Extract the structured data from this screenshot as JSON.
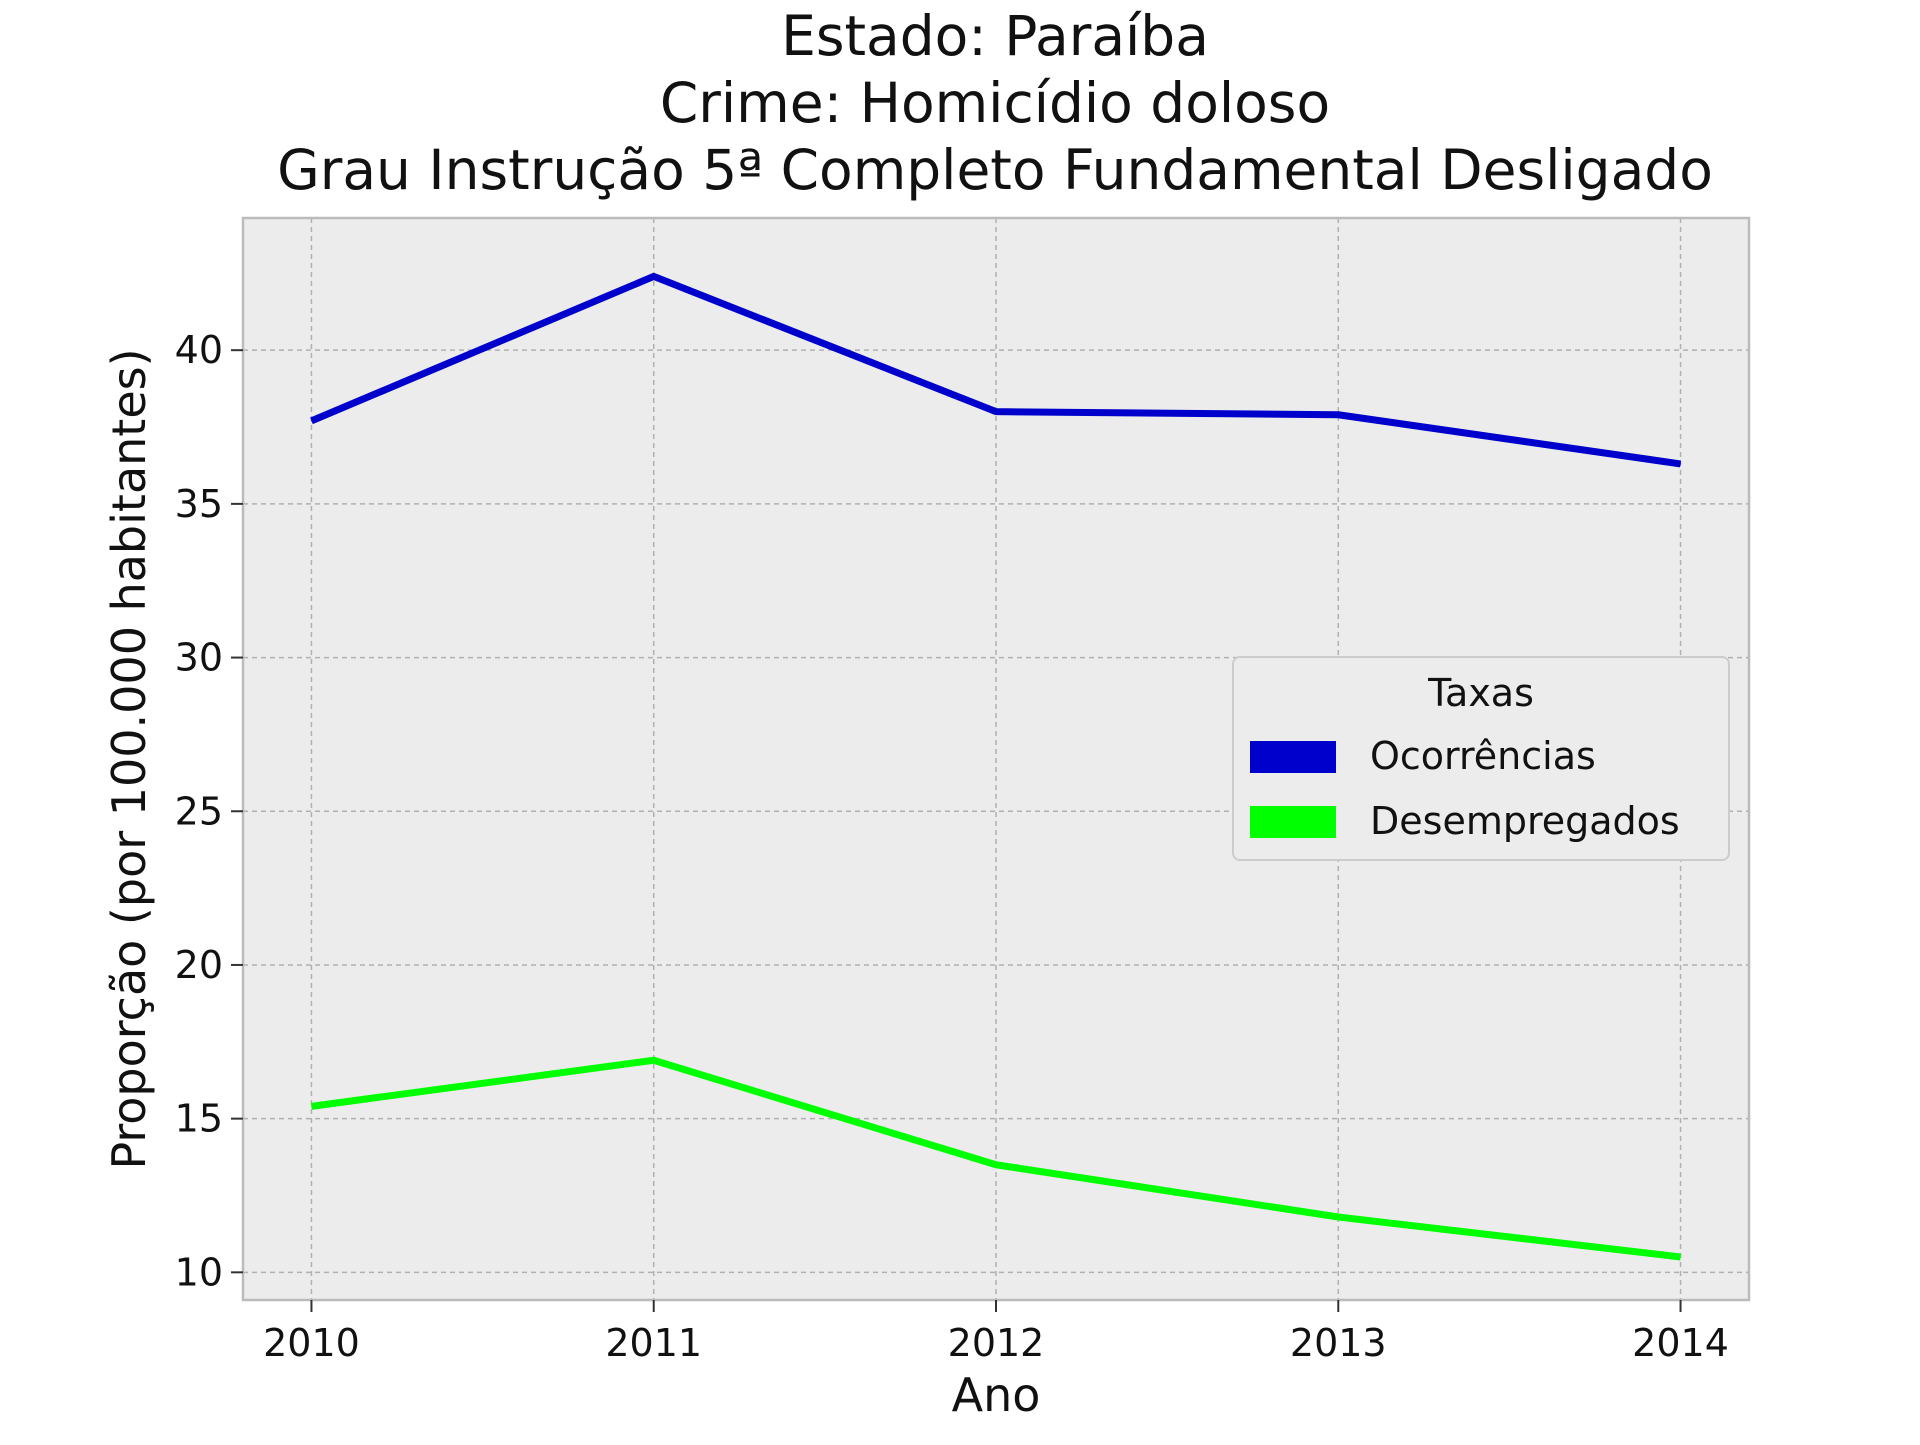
{
  "chart_data": {
    "type": "line",
    "title_lines": [
      "Estado: Paraíba",
      "Crime: Homicídio doloso",
      "Grau Instrução  5ª Completo Fundamental   Desligado"
    ],
    "xlabel": "Ano",
    "ylabel": "Proporção (por 100.000 habitantes)",
    "x": [
      2010,
      2011,
      2012,
      2013,
      2014
    ],
    "x_ticks": [
      "2010",
      "2011",
      "2012",
      "2013",
      "2014"
    ],
    "y_ticks": [
      "10",
      "15",
      "20",
      "25",
      "30",
      "35",
      "40"
    ],
    "xlim": [
      2009.8,
      2014.2
    ],
    "ylim": [
      9.1,
      44.3
    ],
    "grid": true,
    "legend": {
      "title": "Taxas",
      "placement": "center-right"
    },
    "series": [
      {
        "name": "Ocorrências",
        "color": "#0000cc",
        "values": [
          37.7,
          42.4,
          38.0,
          37.9,
          36.3
        ]
      },
      {
        "name": "Desempregados",
        "color": "#00ff00",
        "values": [
          15.4,
          16.9,
          13.5,
          11.8,
          10.5
        ]
      }
    ],
    "colors": {
      "plot_background": "#ececec",
      "grid": "#b0b0b0",
      "spine": "#bbbbbb"
    }
  }
}
